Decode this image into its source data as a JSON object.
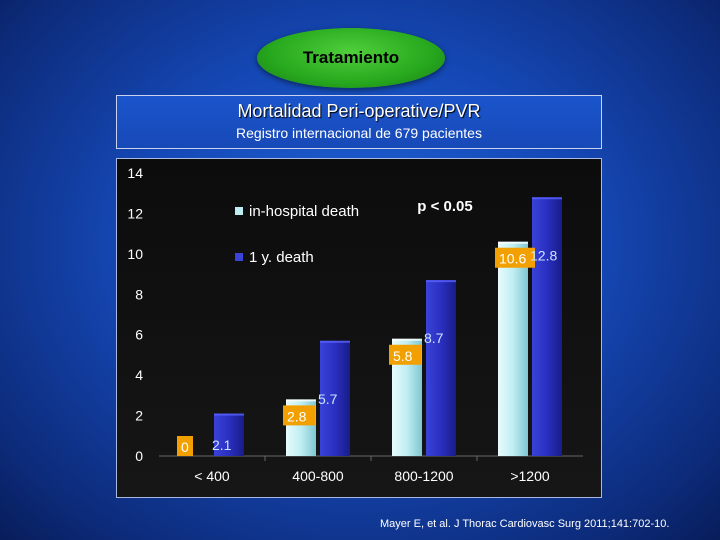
{
  "header": {
    "badge": "Tratamiento",
    "title": "Mortalidad Peri-operative/PVR",
    "subtitle": "Registro internacional de 679 pacientes"
  },
  "chart_data": {
    "type": "bar",
    "categories": [
      "< 400",
      "400-800",
      "800-1200",
      ">1200"
    ],
    "series": [
      {
        "name": "in-hospital death",
        "values": [
          0,
          2.8,
          5.8,
          10.6
        ],
        "labels": [
          "0",
          "2.8",
          "5.8",
          "10.6"
        ],
        "color": "#bfeef2"
      },
      {
        "name": "1 y. death",
        "values": [
          2.1,
          5.7,
          8.7,
          12.8
        ],
        "labels": [
          "2.1",
          "5.7",
          "8.7",
          "12.8"
        ],
        "color": "#2a2fc0"
      }
    ],
    "yticks": [
      "0",
      "2",
      "4",
      "6",
      "8",
      "10",
      "12",
      "14"
    ],
    "ylim": [
      0,
      14
    ],
    "annotation": "p < 0.05",
    "legend_position": "top-left"
  },
  "colors": {
    "label_box": "#f2a000",
    "label_text_light": "#c9e6ff"
  },
  "footer": {
    "citation": "Mayer E, et al. J Thorac Cardiovasc Surg 2011;141:702-10."
  }
}
